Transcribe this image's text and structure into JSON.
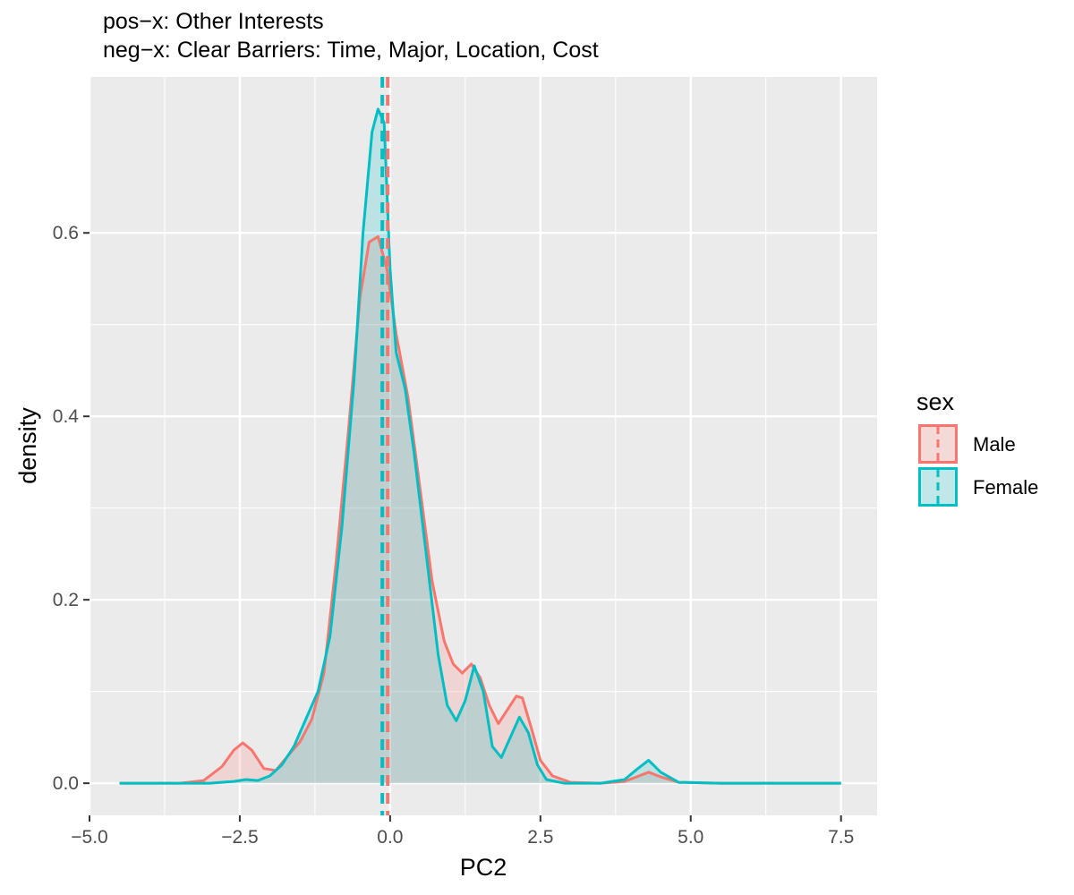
{
  "chart_data": {
    "type": "area",
    "title_lines": [
      "pos−x: Other Interests",
      "neg−x: Clear Barriers: Time, Major, Location, Cost"
    ],
    "xlabel": "PC2",
    "ylabel": "density",
    "xlim": [
      -5.0,
      8.1
    ],
    "ylim": [
      -0.035,
      0.77
    ],
    "x_ticks": [
      -5.0,
      -2.5,
      0.0,
      2.5,
      5.0,
      7.5
    ],
    "x_tick_labels": [
      "−5.0",
      "−2.5",
      "0.0",
      "2.5",
      "5.0",
      "7.5"
    ],
    "y_ticks": [
      0.0,
      0.2,
      0.4,
      0.6
    ],
    "y_tick_labels": [
      "0.0",
      "0.2",
      "0.4",
      "0.6"
    ],
    "grid": true,
    "legend": {
      "title": "sex",
      "position": "right"
    },
    "series": [
      {
        "name": "Male",
        "line_color": "#F8766D",
        "fill_color": "#F8766D",
        "mean": -0.04,
        "x": [
          -4.5,
          -3.5,
          -3.1,
          -2.8,
          -2.6,
          -2.45,
          -2.3,
          -2.1,
          -1.9,
          -1.7,
          -1.5,
          -1.3,
          -1.1,
          -0.9,
          -0.7,
          -0.5,
          -0.35,
          -0.2,
          -0.05,
          0.1,
          0.3,
          0.5,
          0.7,
          0.9,
          1.05,
          1.2,
          1.35,
          1.5,
          1.65,
          1.8,
          1.95,
          2.1,
          2.2,
          2.35,
          2.5,
          2.7,
          3.0,
          3.5,
          3.9,
          4.1,
          4.3,
          4.5,
          4.8,
          5.5,
          7.5
        ],
        "y": [
          0.0,
          0.0,
          0.003,
          0.018,
          0.036,
          0.044,
          0.036,
          0.016,
          0.014,
          0.03,
          0.045,
          0.07,
          0.12,
          0.24,
          0.38,
          0.53,
          0.59,
          0.596,
          0.56,
          0.49,
          0.42,
          0.32,
          0.22,
          0.155,
          0.13,
          0.12,
          0.13,
          0.115,
          0.085,
          0.065,
          0.08,
          0.095,
          0.093,
          0.06,
          0.025,
          0.008,
          0.001,
          0.0,
          0.002,
          0.007,
          0.012,
          0.007,
          0.001,
          0.0,
          0.0
        ]
      },
      {
        "name": "Female",
        "line_color": "#00BFC4",
        "fill_color": "#00BFC4",
        "mean": -0.13,
        "x": [
          -4.5,
          -3.5,
          -3.0,
          -2.6,
          -2.4,
          -2.2,
          -2.0,
          -1.8,
          -1.6,
          -1.4,
          -1.2,
          -1.0,
          -0.8,
          -0.6,
          -0.45,
          -0.3,
          -0.2,
          -0.1,
          0.0,
          0.1,
          0.25,
          0.4,
          0.6,
          0.8,
          0.95,
          1.1,
          1.25,
          1.4,
          1.55,
          1.7,
          1.85,
          2.0,
          2.15,
          2.3,
          2.45,
          2.6,
          2.9,
          3.5,
          3.9,
          4.1,
          4.3,
          4.5,
          4.8,
          5.5,
          7.5
        ],
        "y": [
          0.0,
          0.0,
          0.0,
          0.002,
          0.004,
          0.003,
          0.008,
          0.02,
          0.04,
          0.07,
          0.1,
          0.16,
          0.28,
          0.44,
          0.6,
          0.71,
          0.735,
          0.72,
          0.56,
          0.47,
          0.43,
          0.36,
          0.25,
          0.14,
          0.085,
          0.068,
          0.09,
          0.128,
          0.1,
          0.04,
          0.028,
          0.05,
          0.072,
          0.055,
          0.02,
          0.004,
          0.0,
          0.0,
          0.004,
          0.015,
          0.025,
          0.012,
          0.001,
          0.0,
          0.0
        ]
      }
    ]
  }
}
